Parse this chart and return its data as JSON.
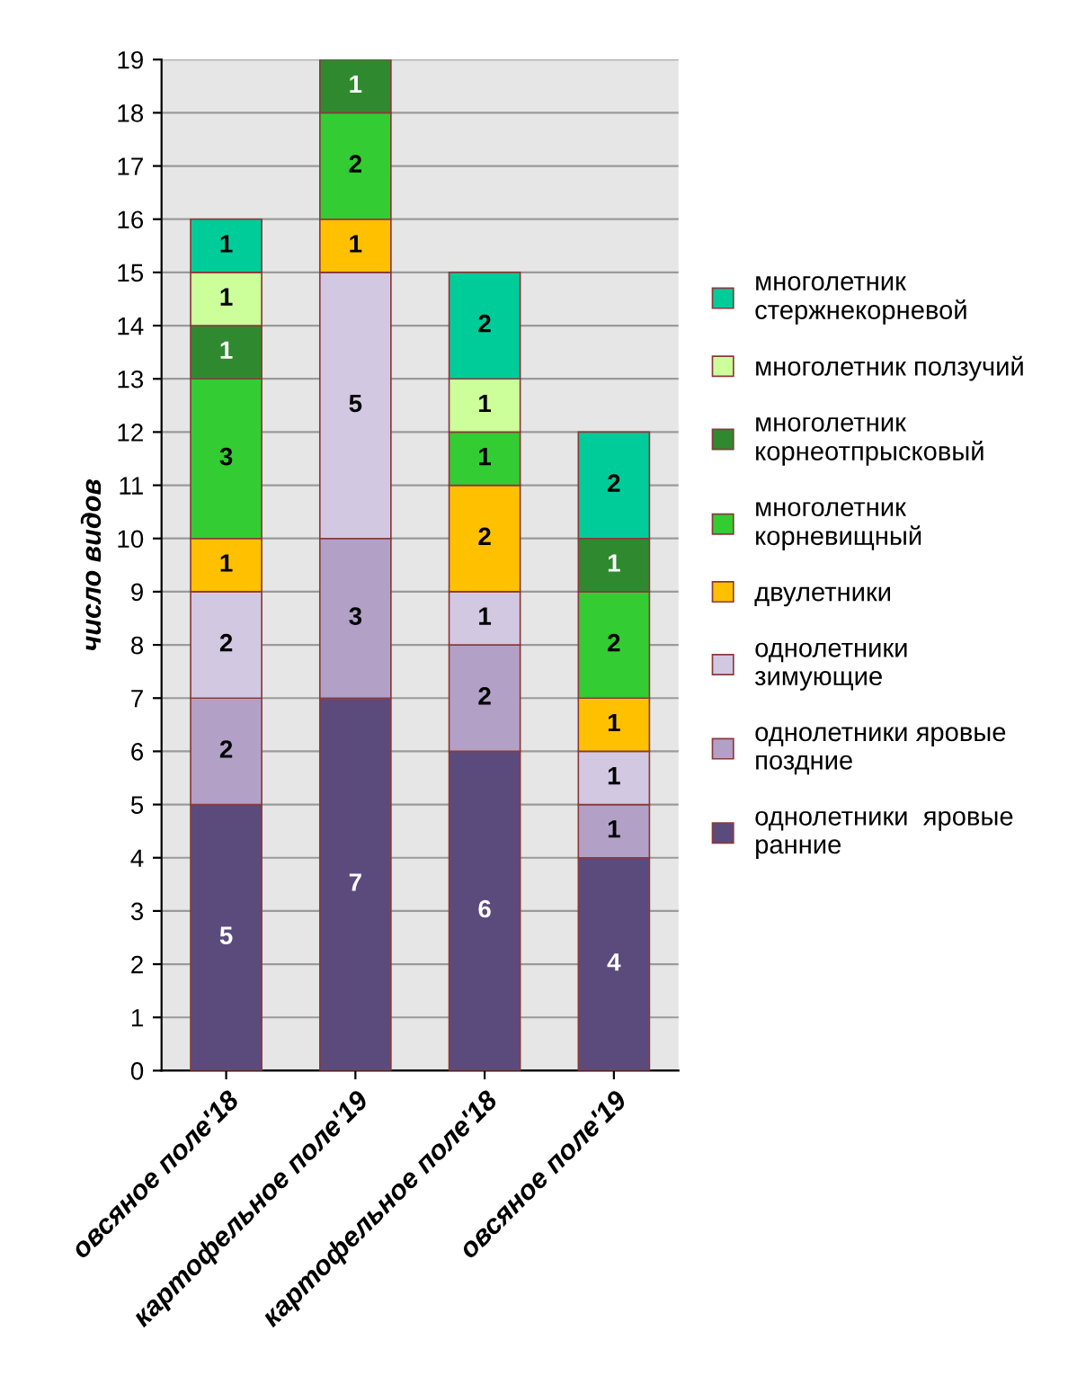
{
  "chart_data": {
    "type": "bar",
    "stacked": true,
    "ylabel": "число видов",
    "categories": [
      "овсяное поле'18",
      "картофельное поле'19",
      "картофельное поле'18",
      "овсяное поле'19"
    ],
    "series": [
      {
        "name": "однолетники  яровые\nранние",
        "color": "#5b4b7d",
        "values": [
          5,
          7,
          6,
          4
        ],
        "value_labels": [
          "5",
          "7",
          "6",
          "4"
        ]
      },
      {
        "name": "однолетники яровые\nпоздние",
        "color": "#b3a0c6",
        "values": [
          2,
          3,
          2,
          1
        ],
        "value_labels": [
          "2",
          "3",
          "2",
          "1"
        ]
      },
      {
        "name": "однолетники\nзимующие",
        "color": "#d3c8e2",
        "values": [
          2,
          5,
          1,
          1
        ],
        "value_labels": [
          "2",
          "5",
          "1",
          "1"
        ]
      },
      {
        "name": "двулетники",
        "color": "#ffc000",
        "values": [
          1,
          1,
          2,
          1
        ],
        "value_labels": [
          "1",
          "1",
          "2",
          "1"
        ]
      },
      {
        "name": "многолетник\nкорневищный",
        "color": "#33cc33",
        "values": [
          3,
          2,
          1,
          2
        ],
        "value_labels": [
          "3",
          "2",
          "1",
          "2"
        ]
      },
      {
        "name": "многолетник\nкорнеотпрысковый",
        "color": "#2f8a2f",
        "values": [
          1,
          1,
          0,
          1
        ],
        "value_labels": [
          "1",
          "1",
          null,
          "1"
        ]
      },
      {
        "name": "многолетник ползучий",
        "color": "#ccff99",
        "values": [
          1,
          0,
          1,
          0
        ],
        "value_labels": [
          "1",
          null,
          "1",
          null
        ]
      },
      {
        "name": "многолетник\nстержнекорневой",
        "color": "#00cc99",
        "values": [
          1,
          0,
          2,
          2
        ],
        "value_labels": [
          "1",
          null,
          "2",
          "2"
        ]
      }
    ],
    "ylim": [
      0,
      19
    ],
    "yticks": [
      0,
      1,
      2,
      3,
      4,
      5,
      6,
      7,
      8,
      9,
      10,
      11,
      12,
      13,
      14,
      15,
      16,
      17,
      18,
      19
    ],
    "grid": "y",
    "legend": "right"
  }
}
